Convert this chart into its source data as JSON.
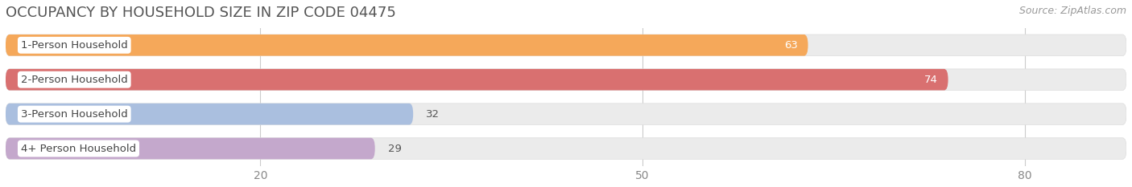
{
  "title": "OCCUPANCY BY HOUSEHOLD SIZE IN ZIP CODE 04475",
  "source": "Source: ZipAtlas.com",
  "categories": [
    "1-Person Household",
    "2-Person Household",
    "3-Person Household",
    "4+ Person Household"
  ],
  "values": [
    63,
    74,
    32,
    29
  ],
  "bar_colors": [
    "#F5A85A",
    "#D97070",
    "#AABFDF",
    "#C4A8CC"
  ],
  "bar_bg_color": "#EBEBEB",
  "label_colors": [
    "white",
    "white",
    "#666666",
    "#666666"
  ],
  "xlim_data": [
    0,
    88
  ],
  "xticks": [
    20,
    50,
    80
  ],
  "title_fontsize": 13,
  "source_fontsize": 9,
  "label_fontsize": 9.5,
  "bar_label_fontsize": 9.5,
  "background_color": "#FFFFFF",
  "bar_height": 0.62,
  "title_color": "#555555",
  "source_color": "#999999",
  "tick_color": "#888888",
  "grid_color": "#CCCCCC"
}
